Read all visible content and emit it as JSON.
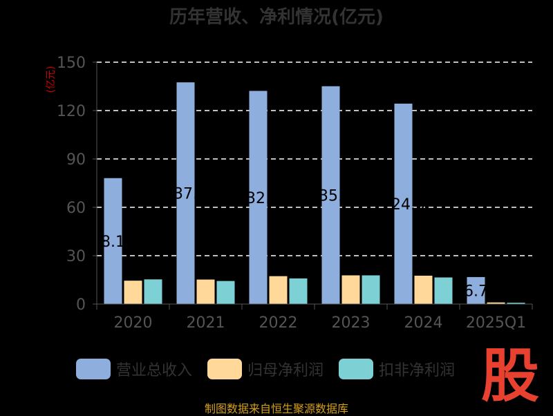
{
  "header": {
    "title": "历年营收、净利情况(亿元)"
  },
  "footer": {
    "source": "制图数据来自恒生聚源数据库",
    "logo_char": "股"
  },
  "colors": {
    "revenue": "#8eaedd",
    "net_profit": "#ffd89a",
    "deducted_profit": "#7dd1d5",
    "grid": "#ffffff",
    "axis": "#555555",
    "ylabel": "#cc0000",
    "tick_text": "#555555"
  },
  "chart_data": {
    "type": "bar",
    "title": "历年营收、净利情况(亿元)",
    "ylabel": "(亿元)",
    "xlabel": "",
    "ylim": [
      0,
      150
    ],
    "yticks": [
      0,
      30,
      60,
      90,
      120,
      150
    ],
    "categories": [
      "2020",
      "2021",
      "2022",
      "2023",
      "2024",
      "2025Q1"
    ],
    "series": [
      {
        "name": "营业总收入",
        "values": [
          78.11,
          137.5,
          132.2,
          135.1,
          124.3,
          16.74
        ]
      },
      {
        "name": "归母净利润",
        "values": [
          14.5,
          15.2,
          17.3,
          17.8,
          17.6,
          1.0
        ]
      },
      {
        "name": "扣非净利润",
        "values": [
          15.3,
          14.3,
          15.9,
          17.8,
          16.5,
          0.8
        ]
      }
    ],
    "data_labels": [
      "78.11",
      "137.5",
      "132.2",
      "135.1",
      "124.3",
      "16.74"
    ],
    "grid": true,
    "legend_position": "bottom"
  }
}
